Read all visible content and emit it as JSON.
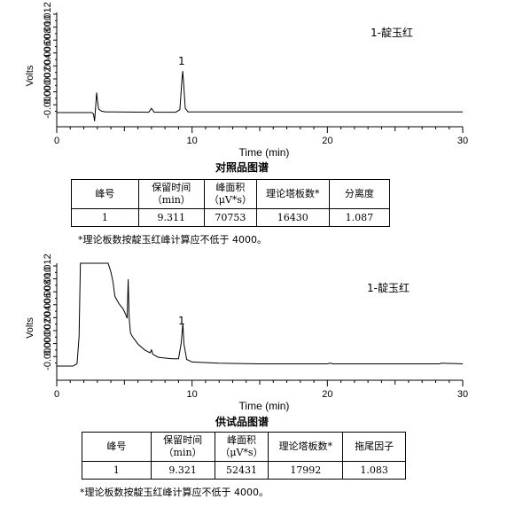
{
  "chart_data": [
    {
      "type": "line",
      "title": "对照品图谱",
      "xlabel": "Time (min)",
      "ylabel": "Volts",
      "xlim": [
        0,
        30
      ],
      "x_ticks": [
        0,
        10,
        20,
        30
      ],
      "ylim": [
        -0.0005,
        0.014
      ],
      "y_ticks": [
        "0.012",
        "0.010",
        "0.008",
        "0.006",
        "0.004",
        "0.002",
        "0.000",
        "-0.000"
      ],
      "legend": "1-靛玉红",
      "peak_label": "1",
      "series": [
        {
          "x": [
            0,
            2.0,
            2.6,
            2.72,
            2.8,
            2.88,
            2.95,
            3.02,
            3.1,
            3.3,
            3.6,
            4.2,
            6.8,
            7.0,
            7.2,
            8.8,
            9.1,
            9.25,
            9.31,
            9.38,
            9.5,
            9.7,
            12,
            16,
            20,
            24,
            28,
            30
          ],
          "y": [
            0,
            0,
            0,
            -0.0002,
            -0.0012,
            0.001,
            0.0028,
            0.0015,
            0.0005,
            0.0002,
            0.0001,
            0.0001,
            5e-05,
            0.0006,
            5e-05,
            5e-05,
            0.0004,
            0.0045,
            0.0058,
            0.004,
            0.0006,
            0.0001,
            0.0001,
            0.0001,
            0.0001,
            0.0001,
            0.0001,
            0.0001
          ]
        }
      ],
      "table": {
        "headers": [
          "峰号",
          "保留时间（min）",
          "峰面积（μV*s）",
          "理论塔板数*",
          "分离度"
        ],
        "rows": [
          [
            "1",
            "9.311",
            "70753",
            "16430",
            "1.087"
          ]
        ]
      },
      "note": "*理论板数按靛玉红峰计算应不低于 4000。"
    },
    {
      "type": "line",
      "title": "供试品图谱",
      "xlabel": "Time (min)",
      "ylabel": "Volts",
      "xlim": [
        0,
        30
      ],
      "x_ticks": [
        0,
        10,
        20,
        30
      ],
      "ylim": [
        -0.0005,
        0.014
      ],
      "y_ticks": [
        "0.012",
        "0.010",
        "0.008",
        "0.006",
        "0.004",
        "0.002",
        "0.000",
        "-0.000"
      ],
      "legend": "1-靛玉红",
      "peak_label": "1",
      "series": [
        {
          "x": [
            0,
            1.2,
            1.5,
            1.65,
            1.75,
            2.0,
            3.0,
            3.8,
            4.0,
            4.15,
            4.3,
            4.6,
            4.9,
            5.1,
            5.2,
            5.28,
            5.35,
            5.45,
            5.6,
            6.0,
            6.5,
            6.9,
            7.0,
            7.1,
            7.5,
            8.5,
            9.0,
            9.2,
            9.32,
            9.4,
            9.6,
            10.0,
            12,
            15,
            20,
            20.2,
            20.4,
            25,
            28.3,
            28.4,
            30
          ],
          "y": [
            0,
            0,
            0.0003,
            0.004,
            0.014,
            0.014,
            0.014,
            0.014,
            0.0128,
            0.0115,
            0.0095,
            0.0085,
            0.0078,
            0.007,
            0.0065,
            0.0118,
            0.0066,
            0.0045,
            0.004,
            0.003,
            0.0022,
            0.0018,
            0.0022,
            0.0016,
            0.0012,
            0.001,
            0.001,
            0.0032,
            0.0058,
            0.003,
            0.0009,
            0.00055,
            0.0004,
            0.0003,
            0.0003,
            0.0004,
            0.0003,
            0.0003,
            0.0003,
            0.0004,
            0.0003
          ]
        }
      ],
      "table": {
        "headers": [
          "峰号",
          "保留时间（min）",
          "峰面积（μV*s）",
          "理论塔板数*",
          "拖尾因子"
        ],
        "rows": [
          [
            "1",
            "9.321",
            "52431",
            "17992",
            "1.083"
          ]
        ]
      },
      "note": "*理论板数按靛玉红峰计算应不低于 4000。"
    }
  ]
}
